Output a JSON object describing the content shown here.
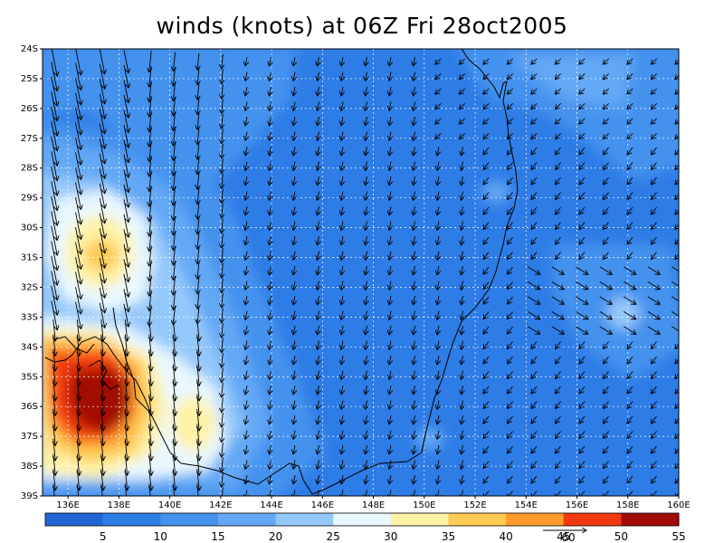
{
  "title": "winds (knots) at 06Z Fri 28oct2005",
  "map": {
    "lon_range": [
      135,
      160
    ],
    "lat_range": [
      -39,
      -24
    ],
    "lat_labels": [
      "24S",
      "25S",
      "26S",
      "27S",
      "28S",
      "29S",
      "30S",
      "31S",
      "32S",
      "33S",
      "34S",
      "35S",
      "36S",
      "37S",
      "38S",
      "39S"
    ],
    "lon_labels": [
      "136E",
      "138E",
      "140E",
      "142E",
      "144E",
      "146E",
      "148E",
      "150E",
      "152E",
      "154E",
      "156E",
      "158E",
      "160E"
    ]
  },
  "colorbar": {
    "labels": [
      "5",
      "10",
      "15",
      "20",
      "25",
      "30",
      "35",
      "40",
      "45",
      "50",
      "55"
    ],
    "colors": [
      "#2166d6",
      "#2e7ce6",
      "#4592ee",
      "#63a8f5",
      "#95c8fa",
      "#e9f8ff",
      "#fff2a6",
      "#ffcb55",
      "#ff9a2b",
      "#f1380e",
      "#a10b06"
    ],
    "reference_vector_label": "60"
  }
}
